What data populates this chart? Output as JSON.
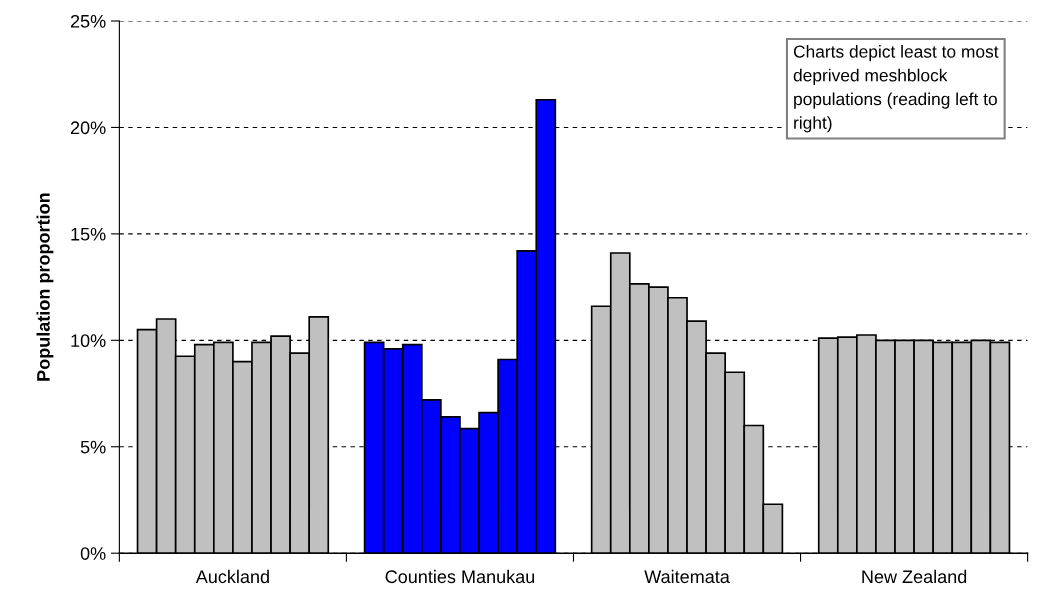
{
  "chart_data": {
    "type": "bar",
    "ylabel": "Population proportion",
    "categories": [
      "Auckland",
      "Counties Manukau",
      "Waitemata",
      "New Zealand"
    ],
    "series": [
      {
        "colors": [
          "#c0c0c0",
          "#0000ff",
          "#c0c0c0",
          "#c0c0c0"
        ],
        "values": [
          10.5,
          9.9,
          11.6,
          10.1
        ]
      },
      {
        "colors": [
          "#c0c0c0",
          "#0000ff",
          "#c0c0c0",
          "#c0c0c0"
        ],
        "values": [
          11.0,
          9.6,
          14.1,
          10.15
        ]
      },
      {
        "colors": [
          "#c0c0c0",
          "#0000ff",
          "#c0c0c0",
          "#c0c0c0"
        ],
        "values": [
          9.25,
          9.8,
          12.65,
          10.25
        ]
      },
      {
        "colors": [
          "#c0c0c0",
          "#0000ff",
          "#c0c0c0",
          "#c0c0c0"
        ],
        "values": [
          9.8,
          7.2,
          12.5,
          10.0
        ]
      },
      {
        "colors": [
          "#c0c0c0",
          "#0000ff",
          "#c0c0c0",
          "#c0c0c0"
        ],
        "values": [
          9.9,
          6.4,
          12.0,
          10.0
        ]
      },
      {
        "colors": [
          "#c0c0c0",
          "#0000ff",
          "#c0c0c0",
          "#c0c0c0"
        ],
        "values": [
          9.0,
          5.85,
          10.9,
          10.0
        ]
      },
      {
        "colors": [
          "#c0c0c0",
          "#0000ff",
          "#c0c0c0",
          "#c0c0c0"
        ],
        "values": [
          9.9,
          6.6,
          9.4,
          9.9
        ]
      },
      {
        "colors": [
          "#c0c0c0",
          "#0000ff",
          "#c0c0c0",
          "#c0c0c0"
        ],
        "values": [
          10.2,
          9.1,
          8.5,
          9.9
        ]
      },
      {
        "colors": [
          "#c0c0c0",
          "#0000ff",
          "#c0c0c0",
          "#c0c0c0"
        ],
        "values": [
          9.4,
          14.2,
          6.0,
          10.0
        ]
      },
      {
        "colors": [
          "#c0c0c0",
          "#0000ff",
          "#c0c0c0",
          "#c0c0c0"
        ],
        "values": [
          11.1,
          21.3,
          2.3,
          9.9
        ]
      }
    ],
    "ylim": [
      0,
      25
    ],
    "yticks": [
      {
        "value": 0,
        "label": "0%"
      },
      {
        "value": 5,
        "label": "5%"
      },
      {
        "value": 10,
        "label": "10%"
      },
      {
        "value": 15,
        "label": "15%"
      },
      {
        "value": 20,
        "label": "20%"
      },
      {
        "value": 25,
        "label": "25%"
      }
    ],
    "grid": "y",
    "line_style": "dashed",
    "annotations": [
      "Charts depict least to most deprived meshblock populations (reading left to right)"
    ]
  }
}
